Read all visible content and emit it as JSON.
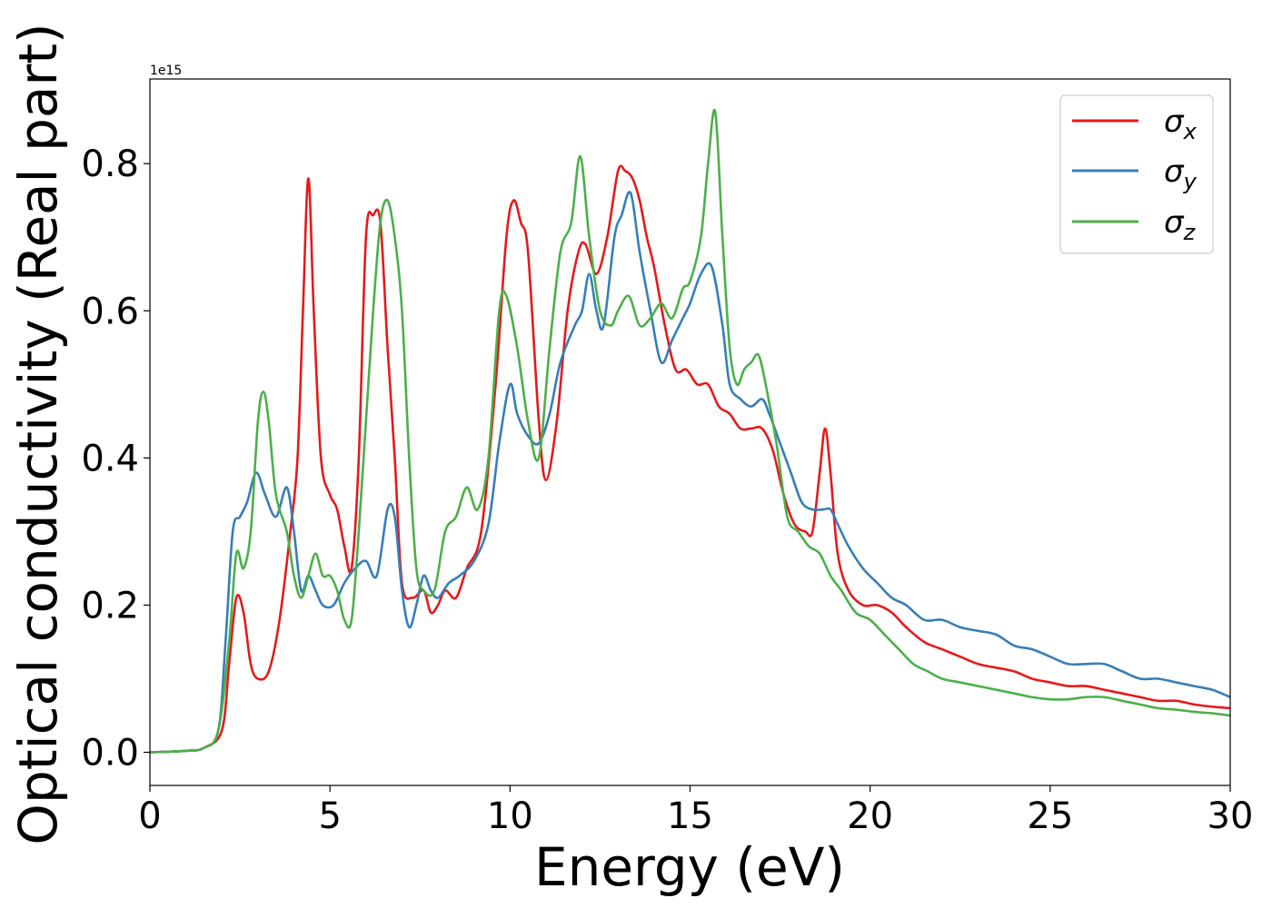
{
  "chart_data": {
    "type": "line",
    "title": "",
    "xlabel": "Energy (eV)",
    "ylabel": "Optical conductivity (Real part)",
    "offset_text": "1e15",
    "xlim": [
      0,
      30
    ],
    "ylim": [
      -0.045,
      0.915
    ],
    "x_ticks": [
      0,
      5,
      10,
      15,
      20,
      25,
      30
    ],
    "x_tick_labels": [
      "0",
      "5",
      "10",
      "15",
      "20",
      "25",
      "30"
    ],
    "y_ticks": [
      0.0,
      0.2,
      0.4,
      0.6,
      0.8
    ],
    "y_tick_labels": [
      "0.0",
      "0.2",
      "0.4",
      "0.6",
      "0.8"
    ],
    "grid": false,
    "legend_position": "upper right",
    "series": [
      {
        "name": "σx",
        "label_main": "σ",
        "label_sub": "x",
        "color": "#e41a1c",
        "x": [
          0,
          1,
          1.5,
          2.0,
          2.2,
          2.4,
          2.6,
          2.8,
          3.0,
          3.3,
          3.6,
          3.9,
          4.1,
          4.25,
          4.4,
          4.55,
          4.75,
          5.0,
          5.2,
          5.4,
          5.6,
          5.8,
          6.0,
          6.2,
          6.4,
          6.6,
          6.8,
          7.0,
          7.3,
          7.6,
          7.8,
          8.0,
          8.2,
          8.5,
          8.8,
          9.2,
          9.6,
          9.9,
          10.1,
          10.3,
          10.5,
          10.8,
          11.0,
          11.3,
          11.6,
          11.9,
          12.1,
          12.4,
          12.7,
          13.0,
          13.2,
          13.4,
          13.6,
          13.8,
          14.0,
          14.3,
          14.6,
          14.9,
          15.2,
          15.5,
          15.8,
          16.1,
          16.4,
          16.7,
          17.0,
          17.3,
          17.6,
          17.9,
          18.2,
          18.4,
          18.6,
          18.75,
          18.9,
          19.1,
          19.4,
          19.8,
          20.2,
          20.6,
          21.0,
          21.5,
          22.0,
          22.5,
          23.0,
          23.5,
          24.0,
          24.5,
          25.0,
          25.5,
          26.0,
          26.5,
          27.0,
          27.5,
          28.0,
          28.5,
          29.0,
          29.5,
          30.0
        ],
        "y": [
          0,
          0.002,
          0.006,
          0.03,
          0.12,
          0.21,
          0.19,
          0.12,
          0.1,
          0.11,
          0.18,
          0.3,
          0.4,
          0.6,
          0.78,
          0.6,
          0.4,
          0.35,
          0.33,
          0.28,
          0.25,
          0.4,
          0.7,
          0.73,
          0.72,
          0.55,
          0.4,
          0.23,
          0.21,
          0.22,
          0.19,
          0.2,
          0.22,
          0.21,
          0.25,
          0.3,
          0.5,
          0.7,
          0.75,
          0.72,
          0.68,
          0.45,
          0.37,
          0.45,
          0.6,
          0.68,
          0.69,
          0.65,
          0.7,
          0.79,
          0.79,
          0.78,
          0.75,
          0.7,
          0.66,
          0.58,
          0.52,
          0.52,
          0.5,
          0.5,
          0.47,
          0.46,
          0.44,
          0.44,
          0.44,
          0.41,
          0.35,
          0.31,
          0.3,
          0.3,
          0.38,
          0.44,
          0.38,
          0.27,
          0.22,
          0.2,
          0.2,
          0.19,
          0.17,
          0.15,
          0.14,
          0.13,
          0.12,
          0.115,
          0.11,
          0.1,
          0.095,
          0.09,
          0.09,
          0.085,
          0.08,
          0.075,
          0.07,
          0.07,
          0.065,
          0.062,
          0.06
        ]
      },
      {
        "name": "σy",
        "label_main": "σ",
        "label_sub": "y",
        "color": "#377eb8",
        "x": [
          0,
          1,
          1.5,
          1.9,
          2.1,
          2.3,
          2.5,
          2.7,
          2.95,
          3.2,
          3.5,
          3.8,
          4.0,
          4.2,
          4.4,
          4.6,
          4.8,
          5.1,
          5.4,
          5.7,
          6.0,
          6.3,
          6.6,
          6.8,
          7.0,
          7.2,
          7.4,
          7.6,
          7.8,
          8.0,
          8.3,
          8.6,
          9.0,
          9.4,
          9.7,
          10.0,
          10.2,
          10.5,
          10.8,
          11.1,
          11.4,
          11.8,
          12.0,
          12.2,
          12.4,
          12.6,
          12.9,
          13.1,
          13.35,
          13.6,
          13.9,
          14.2,
          14.5,
          14.8,
          15.0,
          15.3,
          15.6,
          15.9,
          16.1,
          16.4,
          16.7,
          17.0,
          17.2,
          17.5,
          17.8,
          18.1,
          18.4,
          18.7,
          18.9,
          19.1,
          19.4,
          19.8,
          20.2,
          20.6,
          21.0,
          21.5,
          22.0,
          22.5,
          23.0,
          23.5,
          24.0,
          24.5,
          25.0,
          25.5,
          26.0,
          26.5,
          27.0,
          27.5,
          28.0,
          28.5,
          29.0,
          29.5,
          30.0
        ],
        "y": [
          0,
          0.002,
          0.006,
          0.03,
          0.15,
          0.3,
          0.32,
          0.34,
          0.38,
          0.35,
          0.32,
          0.36,
          0.3,
          0.22,
          0.24,
          0.22,
          0.2,
          0.2,
          0.23,
          0.25,
          0.26,
          0.24,
          0.33,
          0.32,
          0.22,
          0.17,
          0.2,
          0.24,
          0.22,
          0.21,
          0.23,
          0.24,
          0.26,
          0.31,
          0.42,
          0.5,
          0.46,
          0.43,
          0.42,
          0.46,
          0.53,
          0.58,
          0.6,
          0.65,
          0.6,
          0.58,
          0.7,
          0.73,
          0.76,
          0.68,
          0.6,
          0.53,
          0.56,
          0.59,
          0.61,
          0.65,
          0.66,
          0.58,
          0.5,
          0.48,
          0.47,
          0.48,
          0.46,
          0.42,
          0.38,
          0.34,
          0.33,
          0.33,
          0.33,
          0.31,
          0.28,
          0.25,
          0.23,
          0.21,
          0.2,
          0.18,
          0.18,
          0.17,
          0.165,
          0.16,
          0.145,
          0.14,
          0.13,
          0.12,
          0.12,
          0.12,
          0.11,
          0.1,
          0.1,
          0.095,
          0.09,
          0.085,
          0.075
        ]
      },
      {
        "name": "σz",
        "label_main": "σ",
        "label_sub": "z",
        "color": "#4daf4a",
        "x": [
          0,
          1,
          1.5,
          1.9,
          2.2,
          2.4,
          2.6,
          2.8,
          3.0,
          3.15,
          3.3,
          3.5,
          3.8,
          4.0,
          4.2,
          4.4,
          4.6,
          4.8,
          5.0,
          5.2,
          5.4,
          5.6,
          5.8,
          6.0,
          6.2,
          6.4,
          6.6,
          6.8,
          7.0,
          7.2,
          7.4,
          7.6,
          7.9,
          8.2,
          8.5,
          8.8,
          9.1,
          9.4,
          9.7,
          9.9,
          10.2,
          10.5,
          10.8,
          11.1,
          11.4,
          11.7,
          11.95,
          12.2,
          12.5,
          12.8,
          13.0,
          13.3,
          13.6,
          13.9,
          14.2,
          14.5,
          14.8,
          15.0,
          15.3,
          15.5,
          15.7,
          15.9,
          16.1,
          16.3,
          16.5,
          16.7,
          16.9,
          17.1,
          17.4,
          17.7,
          18.0,
          18.3,
          18.6,
          18.9,
          19.2,
          19.6,
          20.0,
          20.4,
          20.8,
          21.2,
          21.6,
          22.0,
          22.5,
          23.0,
          23.5,
          24.0,
          24.5,
          25.0,
          25.5,
          26.0,
          26.5,
          27.0,
          27.5,
          28.0,
          28.5,
          29.0,
          29.5,
          30.0
        ],
        "y": [
          0,
          0.002,
          0.006,
          0.03,
          0.15,
          0.27,
          0.25,
          0.3,
          0.45,
          0.49,
          0.45,
          0.35,
          0.3,
          0.24,
          0.21,
          0.24,
          0.27,
          0.24,
          0.24,
          0.22,
          0.18,
          0.18,
          0.3,
          0.45,
          0.6,
          0.72,
          0.75,
          0.7,
          0.6,
          0.4,
          0.25,
          0.22,
          0.22,
          0.3,
          0.32,
          0.36,
          0.33,
          0.4,
          0.6,
          0.62,
          0.55,
          0.45,
          0.4,
          0.55,
          0.68,
          0.72,
          0.81,
          0.7,
          0.6,
          0.58,
          0.6,
          0.62,
          0.58,
          0.59,
          0.61,
          0.59,
          0.63,
          0.64,
          0.7,
          0.8,
          0.87,
          0.7,
          0.55,
          0.5,
          0.52,
          0.53,
          0.54,
          0.5,
          0.42,
          0.32,
          0.3,
          0.28,
          0.27,
          0.24,
          0.22,
          0.19,
          0.18,
          0.16,
          0.14,
          0.12,
          0.11,
          0.1,
          0.095,
          0.09,
          0.085,
          0.08,
          0.075,
          0.072,
          0.072,
          0.075,
          0.075,
          0.07,
          0.065,
          0.06,
          0.058,
          0.055,
          0.053,
          0.05
        ]
      }
    ]
  }
}
